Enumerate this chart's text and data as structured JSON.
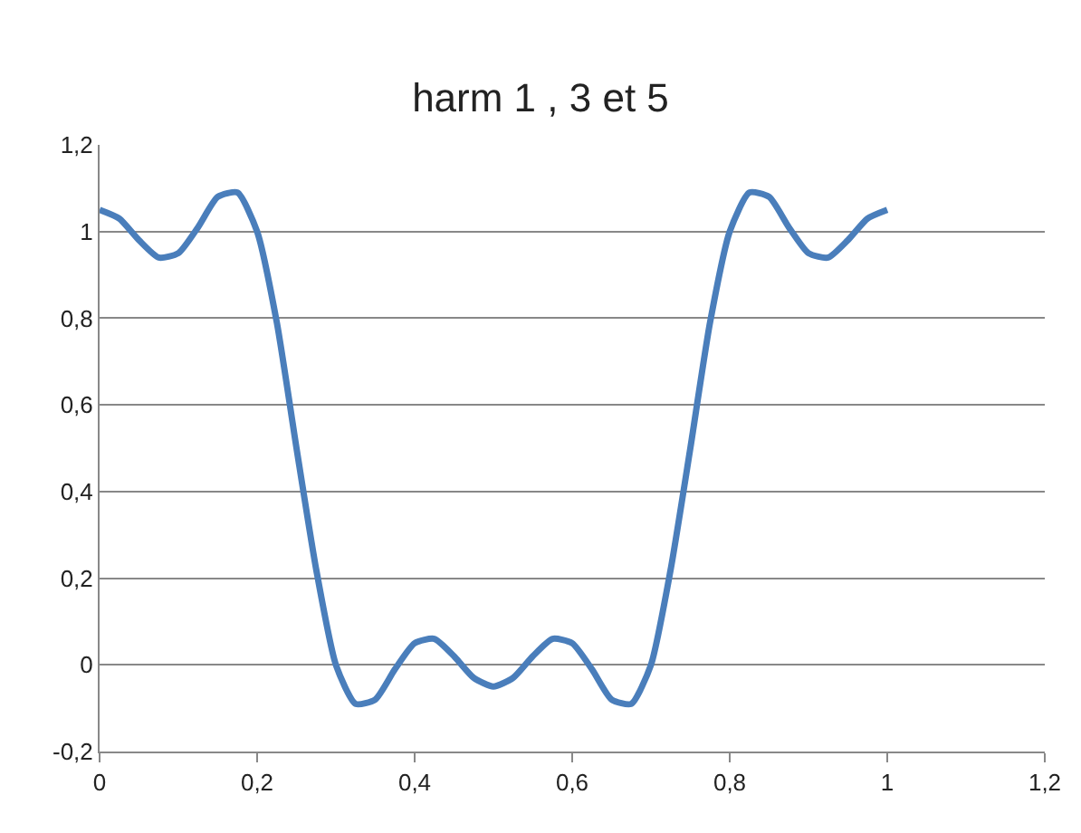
{
  "chart_data": {
    "type": "line",
    "title": "harm 1 , 3 et 5",
    "x": [
      0,
      0.025,
      0.05,
      0.075,
      0.1,
      0.125,
      0.15,
      0.175,
      0.2,
      0.225,
      0.25,
      0.275,
      0.3,
      0.325,
      0.35,
      0.375,
      0.4,
      0.425,
      0.45,
      0.475,
      0.5,
      0.525,
      0.55,
      0.575,
      0.6,
      0.625,
      0.65,
      0.675,
      0.7,
      0.725,
      0.75,
      0.775,
      0.8,
      0.825,
      0.85,
      0.875,
      0.9,
      0.925,
      0.95,
      0.975,
      1
    ],
    "series": [
      {
        "color": "#4a7ebb",
        "values": [
          1.05,
          1.03,
          0.98,
          0.94,
          0.95,
          1.01,
          1.08,
          1.09,
          1.0,
          0.79,
          0.5,
          0.22,
          0.0,
          -0.09,
          -0.08,
          -0.01,
          0.05,
          0.06,
          0.02,
          -0.03,
          -0.05,
          -0.03,
          0.02,
          0.06,
          0.05,
          -0.01,
          -0.08,
          -0.09,
          0.0,
          0.22,
          0.5,
          0.79,
          1.0,
          1.09,
          1.08,
          1.01,
          0.95,
          0.94,
          0.98,
          1.03,
          1.05
        ]
      }
    ],
    "xlim": [
      0,
      1.2
    ],
    "xticks": [
      {
        "value": 0,
        "label": "0"
      },
      {
        "value": 0.2,
        "label": "0,2"
      },
      {
        "value": 0.4,
        "label": "0,4"
      },
      {
        "value": 0.6,
        "label": "0,6"
      },
      {
        "value": 0.8,
        "label": "0,8"
      },
      {
        "value": 1,
        "label": "1"
      },
      {
        "value": 1.2,
        "label": "1,2"
      }
    ],
    "ylim": [
      -0.2,
      1.2
    ],
    "yticks": [
      {
        "value": -0.2,
        "label": "-0,2"
      },
      {
        "value": 0,
        "label": "0"
      },
      {
        "value": 0.2,
        "label": "0,2"
      },
      {
        "value": 0.4,
        "label": "0,4"
      },
      {
        "value": 0.6,
        "label": "0,6"
      },
      {
        "value": 0.8,
        "label": "0,8"
      },
      {
        "value": 1,
        "label": "1"
      },
      {
        "value": 1.2,
        "label": "1,2"
      }
    ],
    "grid": "y",
    "marker": "none",
    "line_style": "solid"
  }
}
